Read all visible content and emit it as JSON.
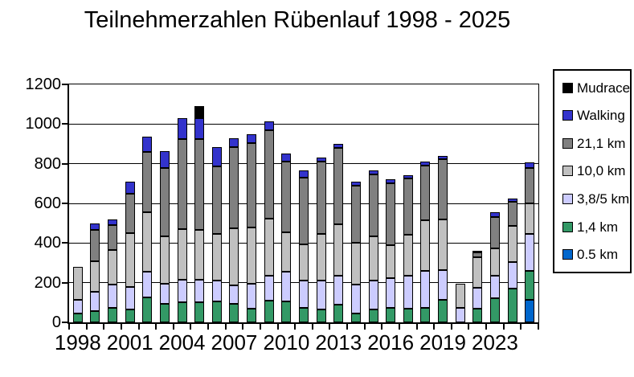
{
  "title": "Teilnehmerzahlen Rübenlauf 1998 - 2025",
  "legend": {
    "items": [
      {
        "label": "Mudrace",
        "color": "#000000"
      },
      {
        "label": "Walking",
        "color": "#3333CC"
      },
      {
        "label": "21,1 km",
        "color": "#808080"
      },
      {
        "label": "10,0 km",
        "color": "#C0C0C0"
      },
      {
        "label": "3,8/5 km",
        "color": "#CCCCFF"
      },
      {
        "label": "1,4 km",
        "color": "#339966"
      },
      {
        "label": "0.5 km",
        "color": "#0066CC"
      }
    ]
  },
  "chart_data": {
    "type": "bar",
    "stacked": true,
    "title": "Teilnehmerzahlen Rübenlauf 1998 - 2025",
    "grid": "horizontal",
    "legend_position": "right",
    "ylim": [
      0,
      1200
    ],
    "ytick_interval": 200,
    "ytick_labels": [
      "0",
      "200",
      "400",
      "600",
      "800",
      "1000",
      "1200"
    ],
    "xtick_labels": [
      "1998",
      "2001",
      "2004",
      "2007",
      "2010",
      "2013",
      "2016",
      "2019",
      "2023"
    ],
    "xtick_label_slot_step": 3,
    "note_missing_year": "2020",
    "categories": [
      "1998",
      "1999",
      "2000",
      "2001",
      "2002",
      "2003",
      "2004",
      "2005",
      "2006",
      "2007",
      "2008",
      "2009",
      "2010",
      "2011",
      "2012",
      "2013",
      "2014",
      "2015",
      "2016",
      "2017",
      "2018",
      "2019",
      "2021",
      "2022",
      "2023",
      "2024",
      "2025"
    ],
    "series": [
      {
        "name": "0.5 km",
        "color": "#0066CC",
        "values": [
          0,
          0,
          0,
          0,
          0,
          0,
          0,
          0,
          0,
          0,
          0,
          0,
          0,
          0,
          0,
          0,
          0,
          0,
          0,
          0,
          0,
          0,
          0,
          0,
          0,
          0,
          115
        ]
      },
      {
        "name": "1,4 km",
        "color": "#339966",
        "values": [
          45,
          55,
          75,
          65,
          125,
          95,
          100,
          100,
          105,
          95,
          70,
          110,
          105,
          75,
          65,
          90,
          45,
          65,
          75,
          70,
          75,
          115,
          0,
          70,
          120,
          170,
          145
        ]
      },
      {
        "name": "3,8/5 km",
        "color": "#CCCCFF",
        "values": [
          70,
          100,
          115,
          115,
          130,
          100,
          115,
          115,
          105,
          90,
          125,
          125,
          150,
          135,
          145,
          145,
          145,
          145,
          150,
          165,
          185,
          150,
          75,
          105,
          115,
          135,
          185
        ]
      },
      {
        "name": "10,0 km",
        "color": "#C0C0C0",
        "values": [
          165,
          155,
          175,
          270,
          300,
          240,
          255,
          250,
          235,
          290,
          285,
          290,
          200,
          185,
          235,
          260,
          210,
          225,
          165,
          205,
          255,
          255,
          120,
          155,
          140,
          180,
          155
        ]
      },
      {
        "name": "21,1 km",
        "color": "#808080",
        "values": [
          0,
          155,
          125,
          200,
          305,
          345,
          455,
          460,
          340,
          410,
          425,
          445,
          355,
          335,
          365,
          385,
          290,
          310,
          310,
          285,
          275,
          305,
          0,
          22,
          155,
          125,
          180
        ]
      },
      {
        "name": "Walking",
        "color": "#3333CC",
        "values": [
          0,
          35,
          30,
          60,
          75,
          85,
          105,
          105,
          100,
          45,
          45,
          45,
          40,
          35,
          20,
          20,
          20,
          20,
          20,
          15,
          20,
          15,
          0,
          8,
          25,
          15,
          25
        ]
      },
      {
        "name": "Mudrace",
        "color": "#000000",
        "values": [
          0,
          0,
          0,
          0,
          0,
          0,
          0,
          60,
          0,
          0,
          0,
          0,
          0,
          0,
          0,
          0,
          0,
          0,
          0,
          0,
          0,
          0,
          0,
          0,
          0,
          0,
          0
        ]
      }
    ]
  }
}
